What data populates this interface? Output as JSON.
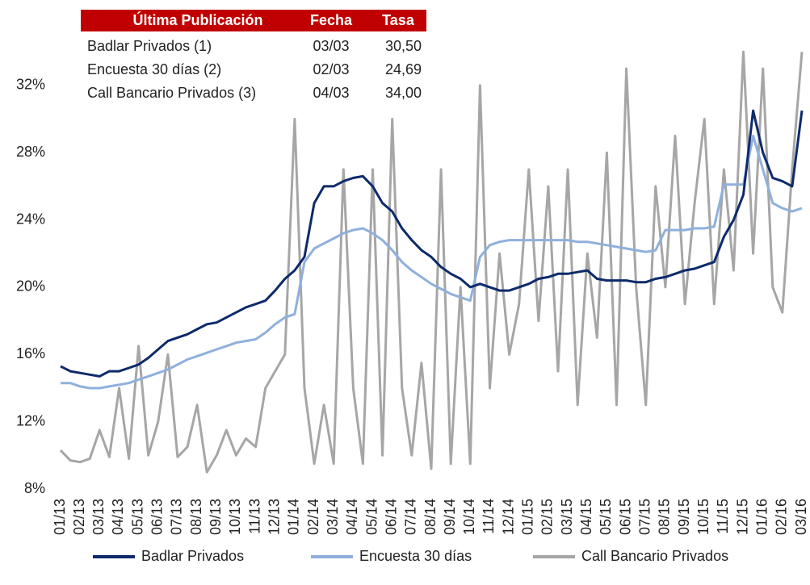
{
  "chart_data": {
    "type": "line",
    "table": {
      "header": [
        "Última Publicación",
        "Fecha",
        "Tasa"
      ],
      "rows": [
        [
          "Badlar Privados (1)",
          "03/03",
          "30,50"
        ],
        [
          "Encuesta 30 días (2)",
          "02/03",
          "24,69"
        ],
        [
          "Call Bancario Privados (3)",
          "04/03",
          "34,00"
        ]
      ]
    },
    "categories": [
      "01/13",
      null,
      "02/13",
      null,
      "03/13",
      null,
      "04/13",
      null,
      "05/13",
      null,
      "06/13",
      null,
      "07/13",
      null,
      "08/13",
      null,
      "09/13",
      null,
      "10/13",
      null,
      "11/13",
      null,
      "12/13",
      null,
      "01/14",
      null,
      "02/14",
      null,
      "03/14",
      null,
      "04/14",
      null,
      "05/14",
      null,
      "06/14",
      null,
      "07/14",
      null,
      "08/14",
      null,
      "09/14",
      null,
      "10/14",
      null,
      "11/14",
      null,
      "12/14",
      null,
      "01/15",
      null,
      "02/15",
      null,
      "03/15",
      null,
      "04/15",
      null,
      "05/15",
      null,
      "06/15",
      null,
      "07/15",
      null,
      "08/15",
      null,
      "09/15",
      null,
      "10/15",
      null,
      "11/15",
      null,
      "12/15",
      null,
      "01/16",
      null,
      "02/16",
      null,
      "03/16"
    ],
    "series": [
      {
        "name": "Badlar Privados",
        "color": "#0d2a6b",
        "values": [
          15.3,
          15.0,
          14.9,
          14.8,
          14.7,
          15.0,
          15.0,
          15.2,
          15.4,
          15.8,
          16.3,
          16.8,
          17.0,
          17.2,
          17.5,
          17.8,
          17.9,
          18.2,
          18.5,
          18.8,
          19.0,
          19.2,
          19.8,
          20.5,
          21.0,
          21.8,
          25.0,
          26.0,
          26.0,
          26.3,
          26.5,
          26.6,
          26.0,
          25.0,
          24.5,
          23.5,
          22.8,
          22.2,
          21.8,
          21.2,
          20.8,
          20.5,
          20.0,
          20.2,
          20.0,
          19.8,
          19.8,
          20.0,
          20.2,
          20.5,
          20.6,
          20.8,
          20.8,
          20.9,
          21.0,
          20.5,
          20.4,
          20.4,
          20.4,
          20.3,
          20.3,
          20.5,
          20.6,
          20.8,
          21.0,
          21.1,
          21.3,
          21.5,
          23.0,
          24.0,
          25.5,
          30.5,
          28.0,
          26.5,
          26.3,
          26.0,
          30.5
        ]
      },
      {
        "name": "Encuesta 30 días",
        "color": "#8fb0dc",
        "values": [
          14.3,
          14.3,
          14.1,
          14.0,
          14.0,
          14.1,
          14.2,
          14.3,
          14.5,
          14.7,
          14.9,
          15.1,
          15.4,
          15.7,
          15.9,
          16.1,
          16.3,
          16.5,
          16.7,
          16.8,
          16.9,
          17.3,
          17.8,
          18.2,
          18.4,
          21.5,
          22.3,
          22.6,
          22.9,
          23.2,
          23.4,
          23.5,
          23.2,
          22.8,
          22.2,
          21.5,
          21.0,
          20.6,
          20.2,
          19.9,
          19.6,
          19.4,
          19.2,
          21.8,
          22.5,
          22.7,
          22.8,
          22.8,
          22.8,
          22.8,
          22.8,
          22.8,
          22.8,
          22.7,
          22.7,
          22.6,
          22.5,
          22.4,
          22.3,
          22.2,
          22.1,
          22.2,
          23.4,
          23.4,
          23.4,
          23.5,
          23.5,
          23.6,
          26.1,
          26.1,
          26.1,
          29.0,
          27.0,
          25.0,
          24.7,
          24.5,
          24.7
        ]
      },
      {
        "name": "Call Bancario Privados",
        "color": "#a6a6a6",
        "values": [
          10.3,
          9.7,
          9.6,
          9.8,
          11.5,
          9.9,
          14.0,
          9.8,
          16.5,
          10.0,
          12.0,
          16.0,
          9.9,
          10.5,
          13.0,
          9.0,
          10.0,
          11.5,
          10.0,
          11.0,
          10.5,
          14.0,
          15.0,
          16.0,
          30.0,
          14.0,
          9.5,
          13.0,
          9.5,
          27.0,
          14.0,
          9.5,
          27.0,
          10.0,
          30.0,
          14.0,
          10.0,
          15.5,
          9.2,
          27.0,
          9.5,
          20.0,
          9.5,
          32.0,
          14.0,
          22.0,
          16.0,
          19.0,
          27.0,
          18.0,
          26.0,
          15.0,
          27.0,
          13.0,
          22.0,
          17.0,
          28.0,
          13.0,
          33.0,
          20.0,
          13.0,
          26.0,
          20.0,
          29.0,
          19.0,
          25.0,
          30.0,
          19.0,
          27.0,
          21.0,
          34.0,
          22.0,
          33.0,
          20.0,
          18.5,
          27.0,
          34.0
        ]
      }
    ],
    "ylim": [
      8,
      34.2
    ],
    "yticks": [
      {
        "value": 8,
        "label": "8%"
      },
      {
        "value": 12,
        "label": "12%"
      },
      {
        "value": 16,
        "label": "16%"
      },
      {
        "value": 20,
        "label": "20%"
      },
      {
        "value": 24,
        "label": "24%"
      },
      {
        "value": 28,
        "label": "28%"
      },
      {
        "value": 32,
        "label": "32%"
      }
    ],
    "grid": false,
    "table_color": "#c00000"
  }
}
